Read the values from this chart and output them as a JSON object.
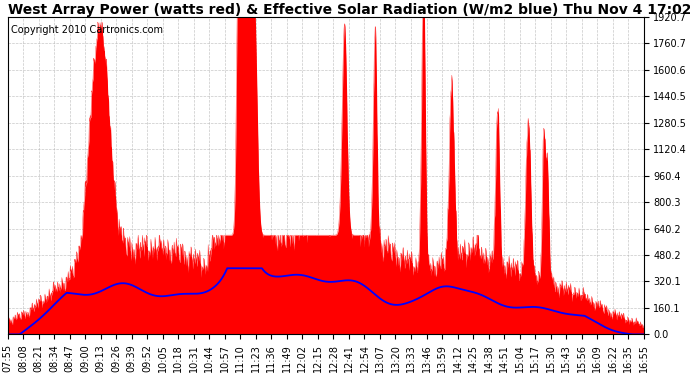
{
  "title": "West Array Power (watts red) & Effective Solar Radiation (W/m2 blue) Thu Nov 4 17:02",
  "copyright": "Copyright 2010 Cartronics.com",
  "background_color": "#ffffff",
  "plot_bg_color": "#ffffff",
  "grid_color": "#b0b0b0",
  "y_min": 0.0,
  "y_max": 1920.7,
  "y_ticks": [
    0.0,
    160.1,
    320.1,
    480.2,
    640.2,
    800.3,
    960.4,
    1120.4,
    1280.5,
    1440.5,
    1600.6,
    1760.7,
    1920.7
  ],
  "x_labels": [
    "07:55",
    "08:08",
    "08:21",
    "08:34",
    "08:47",
    "09:00",
    "09:13",
    "09:26",
    "09:39",
    "09:52",
    "10:05",
    "10:18",
    "10:31",
    "10:44",
    "10:57",
    "11:10",
    "11:23",
    "11:36",
    "11:49",
    "12:02",
    "12:15",
    "12:28",
    "12:41",
    "12:54",
    "13:07",
    "13:20",
    "13:33",
    "13:46",
    "13:59",
    "14:12",
    "14:25",
    "14:38",
    "14:51",
    "15:04",
    "15:17",
    "15:30",
    "15:43",
    "15:56",
    "16:09",
    "16:22",
    "16:35",
    "16:55"
  ],
  "red_line_color": "#ff0000",
  "blue_line_color": "#0000ff",
  "fill_color": "#ff0000",
  "title_fontsize": 10,
  "copyright_fontsize": 7,
  "tick_fontsize": 7
}
